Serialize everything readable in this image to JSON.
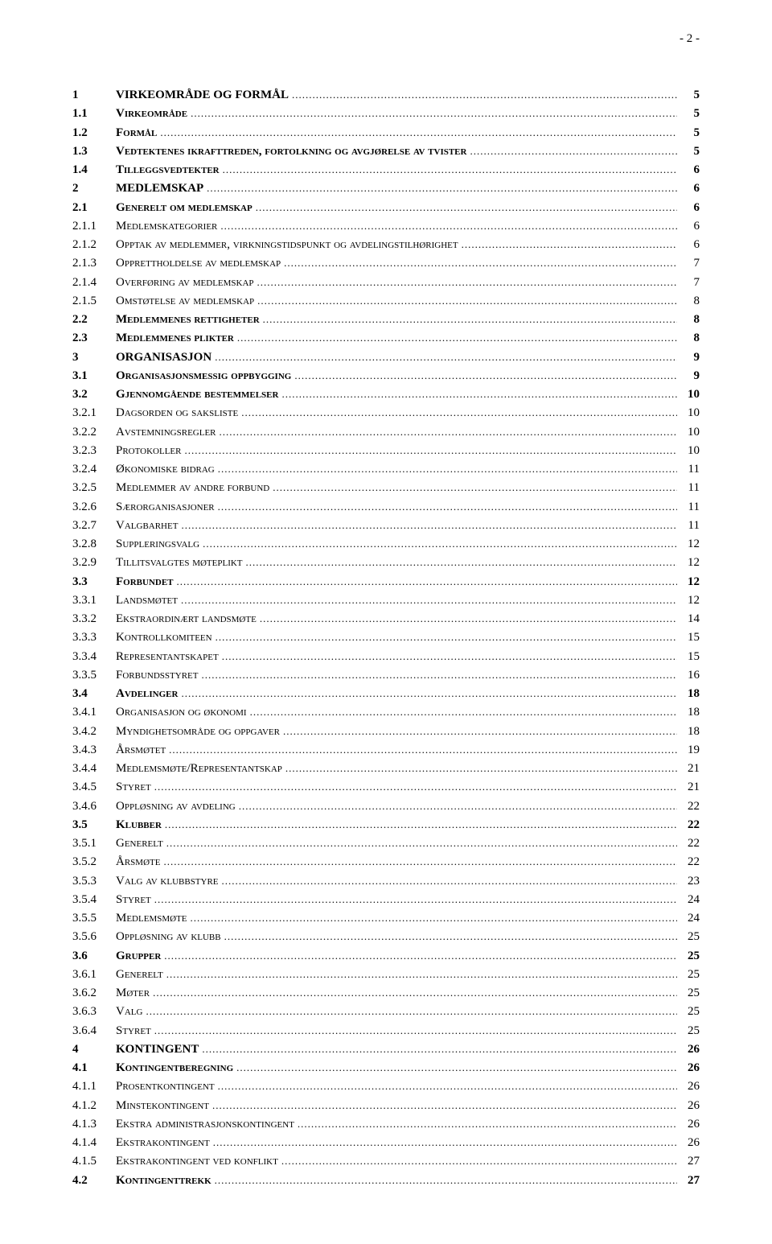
{
  "pageNumberLabel": "- 2 -",
  "styles": {
    "text_color": "#000000",
    "background_color": "#ffffff",
    "font_family": "Times New Roman",
    "base_font_size_pt": 12,
    "line_height": 1.55
  },
  "toc": [
    {
      "num": "1",
      "title": "VIRKEOMRÅDE OG FORMÅL",
      "page": "5",
      "bold": true
    },
    {
      "num": "1.1",
      "title": "Virkeområde",
      "page": "5",
      "bold": true,
      "sc": true
    },
    {
      "num": "1.2",
      "title": "Formål",
      "page": "5",
      "bold": true,
      "sc": true
    },
    {
      "num": "1.3",
      "title": "Vedtektenes ikrafttreden, fortolkning og avgjørelse av tvister",
      "page": "5",
      "bold": true,
      "sc": true
    },
    {
      "num": "1.4",
      "title": "Tilleggsvedtekter",
      "page": "6",
      "bold": true,
      "sc": true
    },
    {
      "num": "2",
      "title": "MEDLEMSKAP",
      "page": "6",
      "bold": true
    },
    {
      "num": "2.1",
      "title": "Generelt om medlemskap",
      "page": "6",
      "bold": true,
      "sc": true
    },
    {
      "num": "2.1.1",
      "title": "Medlemskategorier",
      "page": "6",
      "sc": true
    },
    {
      "num": "2.1.2",
      "title": "Opptak av medlemmer, virkningstidspunkt og avdelingstilhørighet",
      "page": "6",
      "sc": true
    },
    {
      "num": "2.1.3",
      "title": "Opprettholdelse av medlemskap",
      "page": "7",
      "sc": true
    },
    {
      "num": "2.1.4",
      "title": "Overføring av medlemskap",
      "page": "7",
      "sc": true
    },
    {
      "num": "2.1.5",
      "title": "Omstøtelse av medlemskap",
      "page": "8",
      "sc": true
    },
    {
      "num": "2.2",
      "title": "Medlemmenes rettigheter",
      "page": "8",
      "bold": true,
      "sc": true
    },
    {
      "num": "2.3",
      "title": "Medlemmenes plikter",
      "page": "8",
      "bold": true,
      "sc": true
    },
    {
      "num": "3",
      "title": "ORGANISASJON",
      "page": "9",
      "bold": true
    },
    {
      "num": "3.1",
      "title": "Organisasjonsmessig oppbygging",
      "page": "9",
      "bold": true,
      "sc": true
    },
    {
      "num": "3.2",
      "title": "Gjennomgående bestemmelser",
      "page": "10",
      "bold": true,
      "sc": true
    },
    {
      "num": "3.2.1",
      "title": "Dagsorden og saksliste",
      "page": "10",
      "sc": true
    },
    {
      "num": "3.2.2",
      "title": "Avstemningsregler",
      "page": "10",
      "sc": true
    },
    {
      "num": "3.2.3",
      "title": "Protokoller",
      "page": "10",
      "sc": true
    },
    {
      "num": "3.2.4",
      "title": "Økonomiske bidrag",
      "page": "11",
      "sc": true
    },
    {
      "num": "3.2.5",
      "title": "Medlemmer av andre forbund",
      "page": "11",
      "sc": true
    },
    {
      "num": "3.2.6",
      "title": "Særorganisasjoner",
      "page": "11",
      "sc": true
    },
    {
      "num": "3.2.7",
      "title": "Valgbarhet",
      "page": "11",
      "sc": true
    },
    {
      "num": "3.2.8",
      "title": "Suppleringsvalg",
      "page": "12",
      "sc": true
    },
    {
      "num": "3.2.9",
      "title": "Tillitsvalgtes møteplikt",
      "page": "12",
      "sc": true
    },
    {
      "num": "3.3",
      "title": "Forbundet",
      "page": "12",
      "bold": true,
      "sc": true
    },
    {
      "num": "3.3.1",
      "title": "Landsmøtet",
      "page": "12",
      "sc": true
    },
    {
      "num": "3.3.2",
      "title": "Ekstraordinært landsmøte",
      "page": "14",
      "sc": true
    },
    {
      "num": "3.3.3",
      "title": "Kontrollkomiteen",
      "page": "15",
      "sc": true
    },
    {
      "num": "3.3.4",
      "title": "Representantskapet",
      "page": "15",
      "sc": true
    },
    {
      "num": "3.3.5",
      "title": "Forbundsstyret",
      "page": "16",
      "sc": true
    },
    {
      "num": "3.4",
      "title": "Avdelinger",
      "page": "18",
      "bold": true,
      "sc": true
    },
    {
      "num": "3.4.1",
      "title": "Organisasjon og økonomi",
      "page": "18",
      "sc": true
    },
    {
      "num": "3.4.2",
      "title": "Myndighetsområde og oppgaver",
      "page": "18",
      "sc": true
    },
    {
      "num": "3.4.3",
      "title": "Årsmøtet",
      "page": "19",
      "sc": true
    },
    {
      "num": "3.4.4",
      "title": "Medlemsmøte/Representantskap",
      "page": "21",
      "sc": true
    },
    {
      "num": "3.4.5",
      "title": "Styret",
      "page": "21",
      "sc": true
    },
    {
      "num": "3.4.6",
      "title": "Oppløsning av avdeling",
      "page": "22",
      "sc": true
    },
    {
      "num": "3.5",
      "title": "Klubber",
      "page": "22",
      "bold": true,
      "sc": true
    },
    {
      "num": "3.5.1",
      "title": "Generelt",
      "page": "22",
      "sc": true
    },
    {
      "num": "3.5.2",
      "title": "Årsmøte",
      "page": "22",
      "sc": true
    },
    {
      "num": "3.5.3",
      "title": "Valg av klubbstyre",
      "page": "23",
      "sc": true
    },
    {
      "num": "3.5.4",
      "title": "Styret",
      "page": "24",
      "sc": true
    },
    {
      "num": "3.5.5",
      "title": "Medlemsmøte",
      "page": "24",
      "sc": true
    },
    {
      "num": "3.5.6",
      "title": "Oppløsning av klubb",
      "page": "25",
      "sc": true
    },
    {
      "num": "3.6",
      "title": "Grupper",
      "page": "25",
      "bold": true,
      "sc": true
    },
    {
      "num": "3.6.1",
      "title": "Generelt",
      "page": "25",
      "sc": true
    },
    {
      "num": "3.6.2",
      "title": "Møter",
      "page": "25",
      "sc": true
    },
    {
      "num": "3.6.3",
      "title": "Valg",
      "page": "25",
      "sc": true
    },
    {
      "num": "3.6.4",
      "title": "Styret",
      "page": "25",
      "sc": true
    },
    {
      "num": "4",
      "title": "KONTINGENT",
      "page": "26",
      "bold": true
    },
    {
      "num": "4.1",
      "title": "Kontingentberegning",
      "page": "26",
      "bold": true,
      "sc": true
    },
    {
      "num": "4.1.1",
      "title": "Prosentkontingent",
      "page": "26",
      "sc": true
    },
    {
      "num": "4.1.2",
      "title": "Minstekontingent",
      "page": "26",
      "sc": true
    },
    {
      "num": "4.1.3",
      "title": "Ekstra administrasjonskontingent",
      "page": "26",
      "sc": true
    },
    {
      "num": "4.1.4",
      "title": "Ekstrakontingent",
      "page": "26",
      "sc": true
    },
    {
      "num": "4.1.5",
      "title": "Ekstrakontingent ved konflikt",
      "page": "27",
      "sc": true
    },
    {
      "num": "4.2",
      "title": "Kontingenttrekk",
      "page": "27",
      "bold": true,
      "sc": true
    }
  ]
}
